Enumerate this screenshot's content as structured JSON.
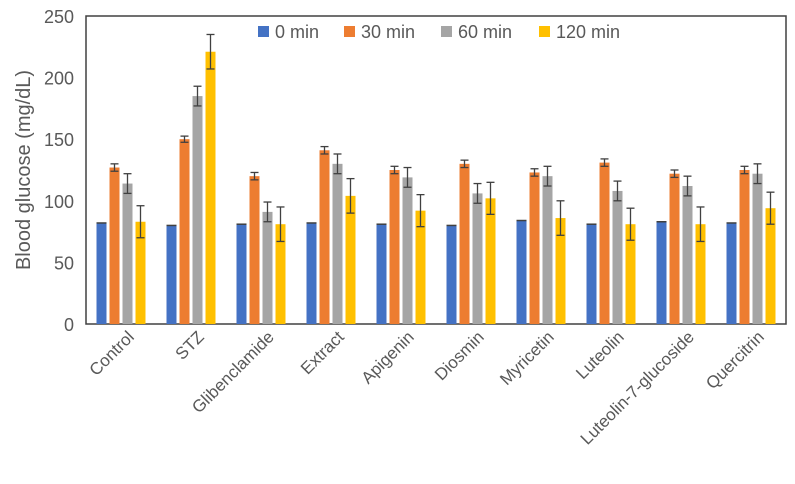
{
  "chart_data": {
    "type": "bar",
    "title": "",
    "xlabel": "",
    "ylabel": "Blood glucose (mg/dL)",
    "ylim": [
      0,
      250
    ],
    "yticks": [
      0,
      50,
      100,
      150,
      200,
      250
    ],
    "grid": false,
    "legend_position": "top",
    "categories": [
      "Control",
      "STZ",
      "Glibenclamide",
      "Extract",
      "Apigenin",
      "Diosmin",
      "Myricetin",
      "Luteolin",
      "Luteolin-7-glucoside",
      "Quercitrin"
    ],
    "series": [
      {
        "name": "0 min",
        "color": "#4472C4",
        "values": [
          82,
          80,
          81,
          82,
          81,
          80,
          84,
          81,
          83,
          82
        ],
        "errors": [
          0.5,
          0.5,
          0.5,
          0.5,
          0.5,
          0.5,
          0.5,
          0.5,
          0.5,
          0.5
        ]
      },
      {
        "name": "30 min",
        "color": "#ED7D31",
        "values": [
          127,
          150,
          120,
          141,
          125,
          130,
          123,
          131,
          122,
          125
        ],
        "errors": [
          3,
          2.5,
          3,
          3,
          3,
          3,
          3,
          3,
          3,
          3
        ]
      },
      {
        "name": "60 min",
        "color": "#A5A5A5",
        "values": [
          114,
          185,
          91,
          130,
          119,
          106,
          120,
          108,
          112,
          122
        ],
        "errors": [
          8,
          8,
          8,
          8,
          8,
          8,
          8,
          8,
          8,
          8
        ]
      },
      {
        "name": "120 min",
        "color": "#FFC000",
        "values": [
          83,
          221,
          81,
          104,
          92,
          102,
          86,
          81,
          81,
          94
        ],
        "errors": [
          13,
          14,
          14,
          14,
          13,
          13,
          14,
          13,
          14,
          13
        ]
      }
    ]
  }
}
